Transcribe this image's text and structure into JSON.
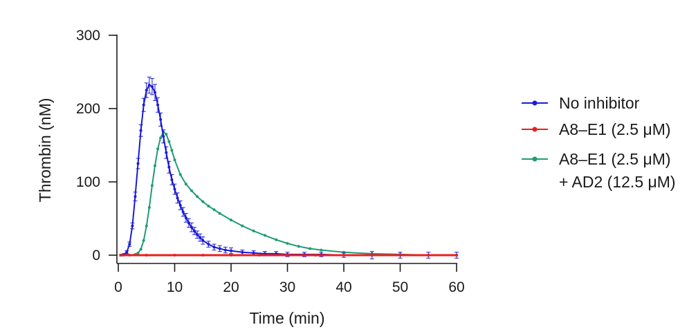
{
  "chart_data": {
    "type": "line",
    "title": "",
    "xlabel": "Time (min)",
    "ylabel": "Thrombin (nM)",
    "xlim": [
      0,
      60
    ],
    "ylim": [
      0,
      300
    ],
    "xticks": [
      "0",
      "10",
      "20",
      "30",
      "40",
      "50",
      "60"
    ],
    "yticks": [
      "0",
      "100",
      "200",
      "300"
    ],
    "grid": false,
    "legend_position": "right",
    "series": [
      {
        "name": "No inhibitor",
        "label_lines": [
          "No inhibitor"
        ],
        "color": "#1a1ad6",
        "error_bars": true,
        "x": [
          0.5,
          1.0,
          1.5,
          2.0,
          2.5,
          3.0,
          3.5,
          4.0,
          4.5,
          5.0,
          5.5,
          6.0,
          6.5,
          7.0,
          7.5,
          8.0,
          8.5,
          9.0,
          9.5,
          10,
          10.5,
          11,
          11.5,
          12,
          12.5,
          13,
          13.5,
          14,
          14.5,
          15,
          16,
          17,
          18,
          19,
          20,
          22,
          24,
          26,
          28,
          30,
          33,
          36,
          40,
          45,
          50,
          55,
          60
        ],
        "values": [
          0,
          1,
          4,
          15,
          40,
          80,
          125,
          170,
          205,
          225,
          232,
          230,
          222,
          205,
          185,
          162,
          140,
          120,
          103,
          90,
          78,
          68,
          59,
          51,
          44,
          38,
          33,
          28,
          24,
          20,
          15,
          11,
          9,
          7,
          6,
          4,
          3,
          2,
          2,
          1,
          1,
          1,
          0,
          0,
          0,
          0,
          0
        ],
        "error": [
          1,
          1,
          2,
          3,
          4,
          6,
          7,
          8,
          9,
          10,
          11,
          11,
          11,
          10,
          9,
          9,
          8,
          8,
          7,
          7,
          7,
          6,
          6,
          6,
          6,
          6,
          5,
          5,
          5,
          5,
          4,
          4,
          4,
          4,
          4,
          3,
          3,
          3,
          3,
          3,
          3,
          3,
          3,
          5,
          4,
          4,
          4
        ]
      },
      {
        "name": "A8–E1 (2.5 μM)",
        "label_lines": [
          "A8–E1 (2.5 μM)"
        ],
        "color": "#e8201c",
        "error_bars": false,
        "x": [
          0.5,
          5,
          10,
          15,
          20,
          25,
          30,
          35,
          40,
          45,
          50,
          55,
          60
        ],
        "values": [
          0,
          0,
          0,
          0,
          0,
          0,
          0,
          0,
          0,
          0,
          0,
          0,
          0
        ]
      },
      {
        "name": "A8–E1 (2.5 μM) + AD2 (12.5 μM)",
        "label_lines": [
          "A8–E1 (2.5 μM)",
          "+ AD2 (12.5 μM)"
        ],
        "color": "#1e9b74",
        "error_bars": false,
        "x": [
          0.5,
          1,
          2,
          3,
          3.5,
          4,
          4.5,
          5,
          5.5,
          6,
          6.5,
          7,
          7.5,
          8,
          8.5,
          9,
          9.5,
          10,
          11,
          12,
          13,
          14,
          15,
          16,
          17,
          18,
          20,
          22,
          24,
          26,
          28,
          30,
          32,
          34,
          36,
          40,
          45,
          50,
          55,
          60
        ],
        "values": [
          0,
          0,
          0,
          1,
          3,
          8,
          20,
          40,
          65,
          95,
          122,
          145,
          160,
          168,
          165,
          155,
          143,
          130,
          110,
          97,
          88,
          80,
          73,
          67,
          62,
          57,
          48,
          40,
          33,
          27,
          21,
          16,
          12,
          9,
          7,
          4,
          2,
          1,
          0,
          0
        ]
      }
    ]
  }
}
